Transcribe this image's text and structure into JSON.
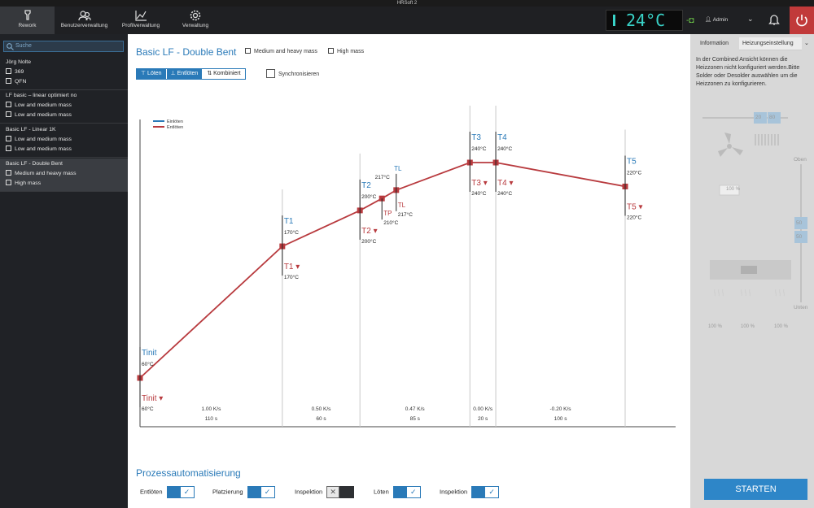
{
  "window": {
    "title": "HRSoft 2"
  },
  "nav": [
    {
      "label": "Rework",
      "icon": "tool-icon",
      "active": true
    },
    {
      "label": "Benutzerverwaltung",
      "icon": "users-icon"
    },
    {
      "label": "Profilverwaltung",
      "icon": "chart-icon"
    },
    {
      "label": "Verwaltung",
      "icon": "gear-icon"
    }
  ],
  "status": {
    "temperature": "24°C",
    "user": "Admin"
  },
  "sidebar": {
    "search_placeholder": "Suche",
    "profiles": [
      {
        "name": "Jörg Nolte",
        "rows": [
          "369",
          "QFN"
        ],
        "selected": false
      },
      {
        "name": "LF basic – linear optimiert no",
        "rows": [
          "Low and medium mass",
          "Low and medium mass"
        ],
        "selected": false
      },
      {
        "name": "Basic LF - Linear 1K",
        "rows": [
          "Low and medium mass",
          "Low and medium mass"
        ],
        "selected": false
      },
      {
        "name": "Basic LF - Double Bent",
        "rows": [
          "Medium and heavy mass",
          "High mass"
        ],
        "selected": true
      }
    ]
  },
  "main": {
    "title": "Basic LF - Double Bent",
    "meta1": "Medium and heavy mass",
    "meta2": "High mass",
    "modes": [
      "Löten",
      "Entlöten",
      "Kombiniert"
    ],
    "sync_label": "Synchronisieren",
    "automation_title": "Prozessautomatisierung",
    "toggles": [
      {
        "label": "Entlöten",
        "on": true
      },
      {
        "label": "Platzierung",
        "on": true
      },
      {
        "label": "Inspektion",
        "on": false
      },
      {
        "label": "Löten",
        "on": true
      },
      {
        "label": "Inspektion",
        "on": true
      }
    ]
  },
  "chart_data": {
    "type": "line",
    "legend": [
      {
        "name": "Einlöten",
        "color": "#2a7ab8"
      },
      {
        "name": "Entlöten",
        "color": "#b83a3e"
      }
    ],
    "series": [
      {
        "name": "Entlöten",
        "color": "#b83a3e",
        "points": [
          {
            "label": "Tinit",
            "temp": 60
          },
          {
            "label": "T1",
            "temp": 170
          },
          {
            "label": "T2",
            "temp": 200
          },
          {
            "label": "TP",
            "temp": 210
          },
          {
            "label": "TL",
            "temp": 217
          },
          {
            "label": "T3",
            "temp": 240
          },
          {
            "label": "T4",
            "temp": 240
          },
          {
            "label": "T5",
            "temp": 220
          }
        ]
      }
    ],
    "upper_labels": [
      {
        "label": "Tinit",
        "value": "60°C"
      },
      {
        "label": "T1",
        "value": "170°C"
      },
      {
        "label": "T2",
        "value": "200°C"
      },
      {
        "label": "TL",
        "value": "217°C"
      },
      {
        "label": "T3",
        "value": "240°C"
      },
      {
        "label": "T4",
        "value": "240°C"
      },
      {
        "label": "T5",
        "value": "220°C"
      }
    ],
    "lower_labels": [
      {
        "label": "Tinit",
        "value": "60°C"
      },
      {
        "label": "T1",
        "value": "170°C"
      },
      {
        "label": "T2",
        "value": "200°C"
      },
      {
        "label": "TP",
        "value": "210°C"
      },
      {
        "label": "TL",
        "value": "217°C"
      },
      {
        "label": "T3",
        "value": "240°C"
      },
      {
        "label": "T4",
        "value": "240°C"
      },
      {
        "label": "T5",
        "value": "220°C"
      }
    ],
    "segments": [
      {
        "rate": "1.00 K/s",
        "time": "110 s"
      },
      {
        "rate": "0.50 K/s",
        "time": "60 s"
      },
      {
        "rate": "0.47 K/s",
        "time": "85 s"
      },
      {
        "rate": "0.00 K/s",
        "time": "20 s"
      },
      {
        "rate": "-0.20 K/s",
        "time": "100 s"
      }
    ]
  },
  "right_panel": {
    "tabs": [
      "Information",
      "Heizungseinstellung"
    ],
    "description": "In der Combined Ansicht können die Heizzonen nicht konfiguriert werden.Bitte Solder oder Desolder auswählen um die Heizzonen zu konfigurieren.",
    "slider_values": [
      "20",
      "80"
    ],
    "fan_percent": "100 %",
    "top_label": "Oben",
    "bottom_label": "Unten",
    "vertical_values": [
      "50",
      "50"
    ],
    "zone_percents": [
      "100 %",
      "100 %",
      "100 %"
    ],
    "start_label": "STARTEN"
  }
}
